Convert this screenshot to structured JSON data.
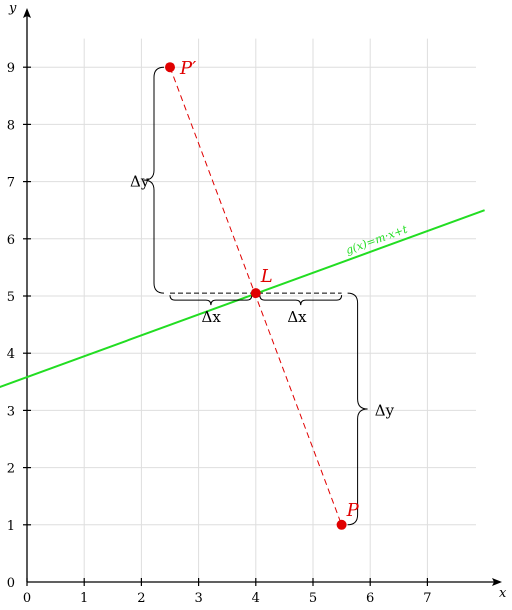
{
  "chart_data": {
    "type": "line",
    "xlabel": "x",
    "ylabel": "y",
    "xlim": [
      0,
      8
    ],
    "ylim": [
      0,
      9.8
    ],
    "grid": true,
    "xticks": [
      "0",
      "1",
      "2",
      "3",
      "4",
      "5",
      "6",
      "7"
    ],
    "yticks": [
      "0",
      "1",
      "2",
      "3",
      "4",
      "5",
      "6",
      "7",
      "8",
      "9"
    ],
    "line": {
      "label": "g(x)=m·x+t",
      "color": "#22dd22",
      "points": [
        [
          -0.5,
          3.4
        ],
        [
          8,
          6.5
        ]
      ]
    },
    "points": [
      {
        "label": "P",
        "x": 5.5,
        "y": 1,
        "color": "#e00000"
      },
      {
        "label": "L",
        "x": 4,
        "y": 5.05,
        "color": "#e00000"
      },
      {
        "label": "P′",
        "x": 2.5,
        "y": 9,
        "color": "#e00000"
      }
    ],
    "annotations": {
      "delta_x_left": "Δx",
      "delta_x_right": "Δx",
      "delta_y_upper": "Δy",
      "delta_y_lower": "Δy"
    }
  }
}
